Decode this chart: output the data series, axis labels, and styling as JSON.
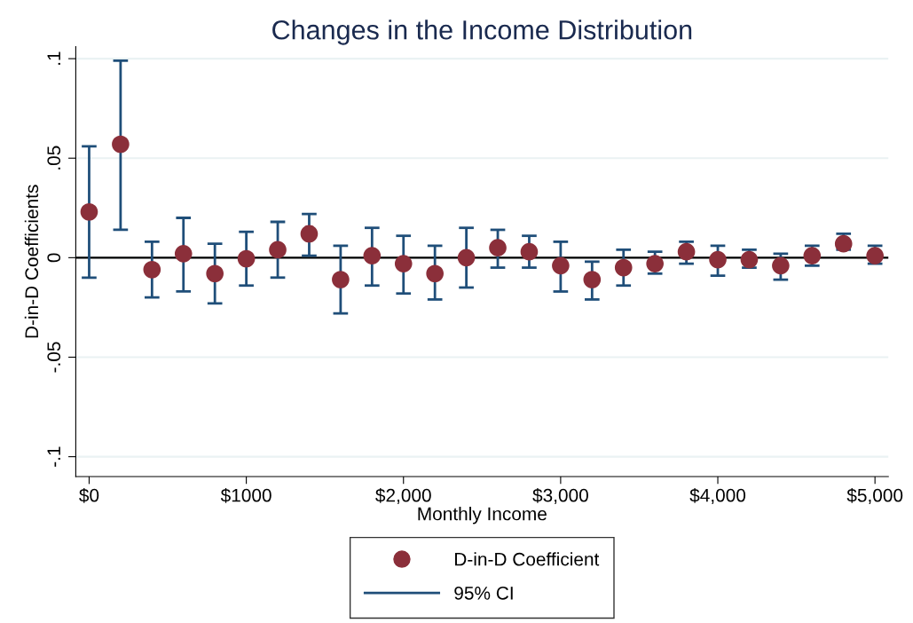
{
  "chart_data": {
    "type": "scatter",
    "title": "Changes in the Income Distribution",
    "xlabel": "Monthly Income",
    "ylabel": "D-in-D Coefficients",
    "x": [
      0,
      200,
      400,
      600,
      800,
      1000,
      1200,
      1400,
      1600,
      1800,
      2000,
      2200,
      2400,
      2600,
      2800,
      3000,
      3200,
      3400,
      3600,
      3800,
      4000,
      4200,
      4400,
      4600,
      4800,
      5000
    ],
    "series": [
      {
        "name": "D-in-D Coefficient",
        "color": "#8b2f3a",
        "marker": "circle",
        "values": [
          0.023,
          0.057,
          -0.006,
          0.002,
          -0.008,
          -0.0005,
          0.004,
          0.012,
          -0.011,
          0.001,
          -0.003,
          -0.008,
          0,
          0.005,
          0.003,
          -0.004,
          -0.011,
          -0.005,
          -0.003,
          0.003,
          -0.001,
          -0.001,
          -0.004,
          0.001,
          0.007,
          0.001
        ],
        "errors": [
          [
            -0.01,
            0.056
          ],
          [
            0.014,
            0.099
          ],
          [
            -0.02,
            0.008
          ],
          [
            -0.017,
            0.02
          ],
          [
            -0.023,
            0.007
          ],
          [
            -0.014,
            0.013
          ],
          [
            -0.01,
            0.018
          ],
          [
            0.001,
            0.022
          ],
          [
            -0.028,
            0.006
          ],
          [
            -0.014,
            0.015
          ],
          [
            -0.018,
            0.011
          ],
          [
            -0.021,
            0.006
          ],
          [
            -0.015,
            0.015
          ],
          [
            -0.005,
            0.014
          ],
          [
            -0.005,
            0.011
          ],
          [
            -0.017,
            0.008
          ],
          [
            -0.021,
            -0.002
          ],
          [
            -0.014,
            0.004
          ],
          [
            -0.008,
            0.003
          ],
          [
            -0.003,
            0.008
          ],
          [
            -0.009,
            0.006
          ],
          [
            -0.005,
            0.004
          ],
          [
            -0.011,
            0.002
          ],
          [
            -0.004,
            0.006
          ],
          [
            0.004,
            0.012
          ],
          [
            -0.003,
            0.006
          ]
        ]
      }
    ],
    "xlim": [
      -85,
      5085
    ],
    "xticks": [
      {
        "value": 0,
        "label": "$0"
      },
      {
        "value": 1000,
        "label": "$1000"
      },
      {
        "value": 2000,
        "label": "$2,000"
      },
      {
        "value": 3000,
        "label": "$3,000"
      },
      {
        "value": 4000,
        "label": "$4,000"
      },
      {
        "value": 5000,
        "label": "$5,000"
      }
    ],
    "ylim": [
      -0.11,
      0.106
    ],
    "yticks": [
      {
        "value": -0.1,
        "label": "-.1"
      },
      {
        "value": -0.05,
        "label": "-.05"
      },
      {
        "value": 0,
        "label": "0"
      },
      {
        "value": 0.05,
        "label": ".05"
      },
      {
        "value": 0.1,
        "label": ".1"
      }
    ],
    "ref_lines": [
      {
        "axis": "y",
        "value": 0,
        "color": "#000000"
      }
    ],
    "annotations": [
      "95% CI"
    ],
    "grid": "y",
    "legend": "bottom"
  }
}
